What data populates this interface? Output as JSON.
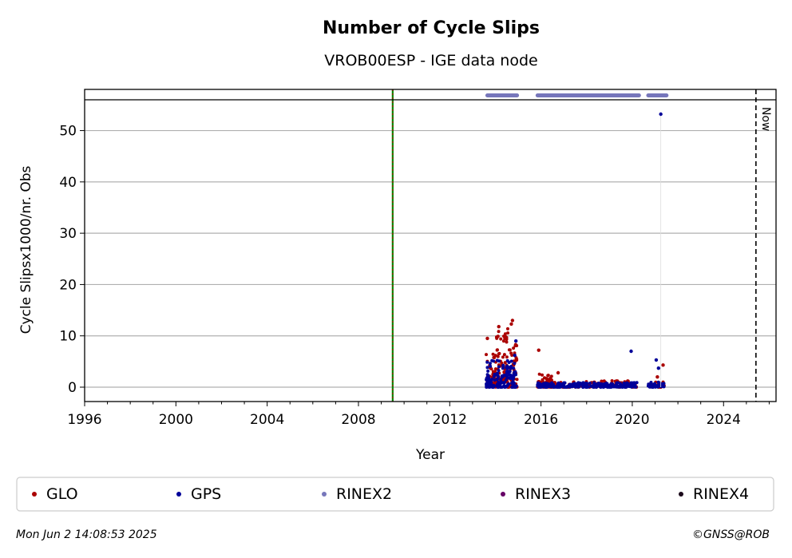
{
  "chart_data": {
    "type": "scatter",
    "title": "Number of Cycle Slips",
    "subtitle": "VROB00ESP - IGE data node",
    "xlabel": "Year",
    "ylabel": "Cycle Slipsx1000/nr. Obs",
    "xlim": [
      1996,
      2026.3
    ],
    "ylim": [
      -2.8,
      56
    ],
    "x_ticks": [
      "1996",
      "2000",
      "2004",
      "2008",
      "2012",
      "2016",
      "2020",
      "2024"
    ],
    "y_ticks": [
      "0",
      "10",
      "20",
      "30",
      "40",
      "50"
    ],
    "grid": "horizontal",
    "now_label": "Now",
    "now_x": 2025.42,
    "event_line_x": 2009.5,
    "series": [
      {
        "name": "GLO",
        "color": "#aa0000",
        "segments": [
          {
            "x0": 2013.6,
            "x1": 2014.05,
            "n": 45,
            "ymin": 0,
            "ymax": 7.5
          },
          {
            "x0": 2014.05,
            "x1": 2014.55,
            "n": 60,
            "ymin": 1,
            "ymax": 11.5
          },
          {
            "x0": 2014.55,
            "x1": 2014.95,
            "n": 50,
            "ymin": 0,
            "ymax": 8.5
          },
          {
            "x0": 2015.85,
            "x1": 2016.5,
            "n": 45,
            "ymin": 0,
            "ymax": 2.8
          },
          {
            "x0": 2016.5,
            "x1": 2020.2,
            "n": 120,
            "ymin": 0,
            "ymax": 1.3
          },
          {
            "x0": 2020.7,
            "x1": 2021.4,
            "n": 20,
            "ymin": 0,
            "ymax": 1.0
          }
        ],
        "points": [
          {
            "x": 2014.75,
            "y": 13.0
          },
          {
            "x": 2014.7,
            "y": 12.3
          },
          {
            "x": 2013.65,
            "y": 9.5
          },
          {
            "x": 2014.15,
            "y": 11.8
          },
          {
            "x": 2015.9,
            "y": 7.2
          },
          {
            "x": 2016.75,
            "y": 2.8
          },
          {
            "x": 2021.35,
            "y": 4.3
          },
          {
            "x": 2021.1,
            "y": 2.0
          },
          {
            "x": 2019.8,
            "y": 1.2
          }
        ]
      },
      {
        "name": "GPS",
        "color": "#000099",
        "segments": [
          {
            "x0": 2013.6,
            "x1": 2014.95,
            "n": 150,
            "ymin": 0,
            "ymax": 5.5
          },
          {
            "x0": 2015.85,
            "x1": 2020.2,
            "n": 260,
            "ymin": 0,
            "ymax": 0.9
          },
          {
            "x0": 2020.7,
            "x1": 2021.4,
            "n": 40,
            "ymin": 0,
            "ymax": 1.0
          }
        ],
        "points": [
          {
            "x": 2021.25,
            "y": 53.2
          },
          {
            "x": 2019.95,
            "y": 7.0
          },
          {
            "x": 2021.05,
            "y": 5.3
          },
          {
            "x": 2021.15,
            "y": 3.7
          },
          {
            "x": 2014.9,
            "y": 9.0
          },
          {
            "x": 2014.85,
            "y": 6.2
          }
        ]
      },
      {
        "name": "RINEX2",
        "color": "#7777bb",
        "bands": [
          {
            "x0": 2013.65,
            "x1": 2014.95
          },
          {
            "x0": 2015.85,
            "x1": 2020.3
          },
          {
            "x0": 2020.7,
            "x1": 2021.5
          }
        ],
        "y": 57
      },
      {
        "name": "RINEX3",
        "color": "#660066"
      },
      {
        "name": "RINEX4",
        "color": "#1a0a1a"
      }
    ]
  },
  "footer": {
    "timestamp": "Mon Jun  2 14:08:53 2025",
    "credit": "©GNSS@ROB"
  }
}
